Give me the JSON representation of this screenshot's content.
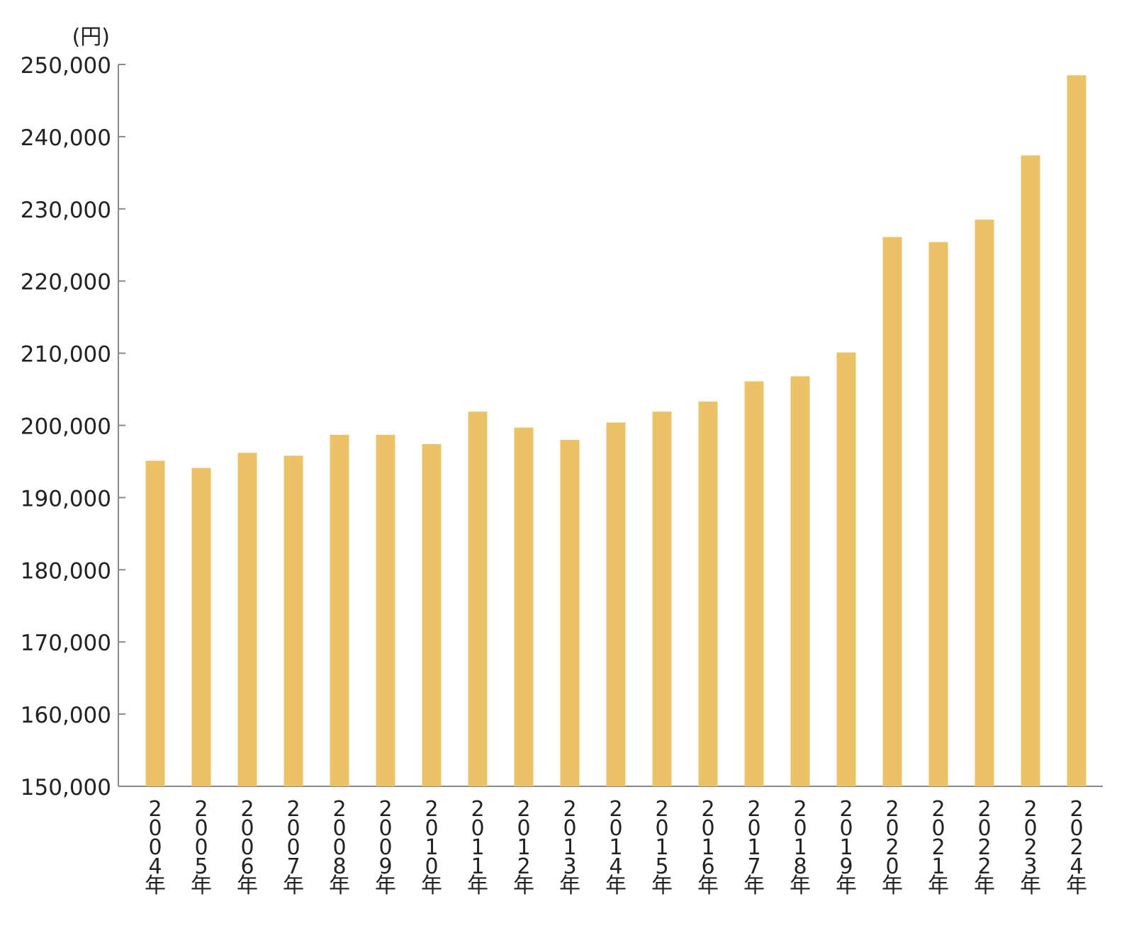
{
  "chart_data": {
    "type": "bar",
    "title": "",
    "xlabel": "",
    "ylabel": "",
    "unit_label": "(円)",
    "ylim": [
      150000,
      250000
    ],
    "yticks": [
      150000,
      160000,
      170000,
      180000,
      190000,
      200000,
      210000,
      220000,
      230000,
      240000,
      250000
    ],
    "ytick_labels": [
      "150,000",
      "160,000",
      "170,000",
      "180,000",
      "190,000",
      "200,000",
      "210,000",
      "220,000",
      "230,000",
      "240,000",
      "250,000"
    ],
    "categories": [
      "2004年",
      "2005年",
      "2006年",
      "2007年",
      "2008年",
      "2009年",
      "2010年",
      "2011年",
      "2012年",
      "2013年",
      "2014年",
      "2015年",
      "2016年",
      "2017年",
      "2018年",
      "2019年",
      "2020年",
      "2021年",
      "2022年",
      "2023年",
      "2024年"
    ],
    "values": [
      195100,
      194100,
      196200,
      195800,
      198700,
      198700,
      197400,
      201900,
      199700,
      198000,
      200400,
      201900,
      203300,
      206100,
      206800,
      210100,
      226100,
      225400,
      228500,
      237400,
      248500
    ],
    "grid": false,
    "bar_color": "#EBC366",
    "axis_color": "#888888"
  }
}
